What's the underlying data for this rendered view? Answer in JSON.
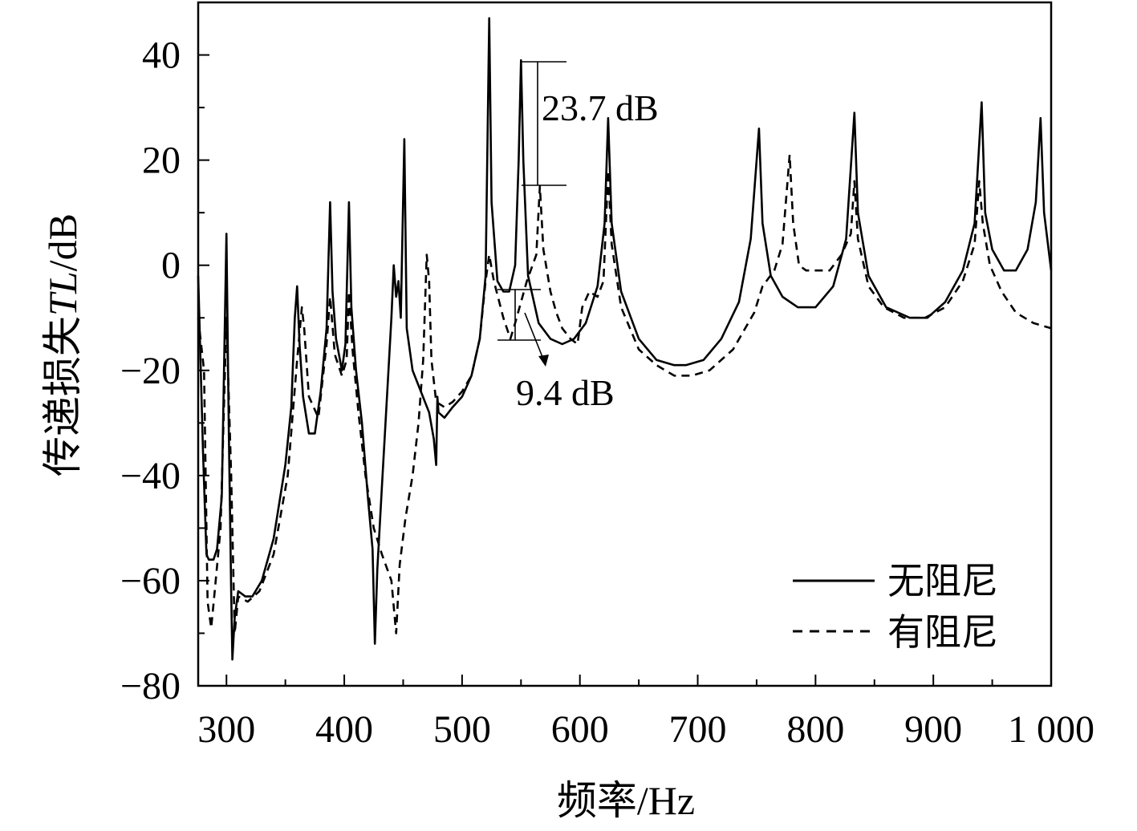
{
  "chart_data": {
    "type": "line",
    "xlabel": "频率/Hz",
    "ylabel_prefix": "传递损失",
    "ylabel_italic": "TL",
    "ylabel_suffix": "/dB",
    "xlim": [
      276,
      1000
    ],
    "ylim": [
      -80,
      50
    ],
    "x_ticks": [
      300,
      400,
      500,
      600,
      700,
      800,
      900,
      1000
    ],
    "x_tick_labels": [
      "300",
      "400",
      "500",
      "600",
      "700",
      "800",
      "900",
      "1 000"
    ],
    "y_ticks": [
      -80,
      -60,
      -40,
      -20,
      0,
      20,
      40
    ],
    "y_tick_labels": [
      "−80",
      "−60",
      "−40",
      "−20",
      "0",
      "20",
      "40"
    ],
    "grid": false,
    "legend_position": "bottom-right",
    "series": [
      {
        "name": "无阻尼",
        "style": "solid",
        "points": [
          [
            276,
            -2
          ],
          [
            280,
            -35
          ],
          [
            283,
            -55
          ],
          [
            285,
            -56
          ],
          [
            289,
            -56
          ],
          [
            292,
            -54
          ],
          [
            296,
            -44
          ],
          [
            300,
            6
          ],
          [
            302,
            -32
          ],
          [
            304,
            -62
          ],
          [
            305,
            -75
          ],
          [
            307,
            -67
          ],
          [
            310,
            -62
          ],
          [
            316,
            -63
          ],
          [
            322,
            -63
          ],
          [
            330,
            -60
          ],
          [
            340,
            -52
          ],
          [
            350,
            -38
          ],
          [
            355,
            -27
          ],
          [
            358,
            -10
          ],
          [
            360,
            -4
          ],
          [
            362,
            -15
          ],
          [
            365,
            -25
          ],
          [
            370,
            -32
          ],
          [
            375,
            -32
          ],
          [
            380,
            -24
          ],
          [
            385,
            -12
          ],
          [
            388,
            12
          ],
          [
            390,
            -5
          ],
          [
            393,
            -14
          ],
          [
            398,
            -20
          ],
          [
            401,
            -15
          ],
          [
            404,
            12
          ],
          [
            406,
            -8
          ],
          [
            410,
            -20
          ],
          [
            415,
            -30
          ],
          [
            420,
            -44
          ],
          [
            424,
            -54
          ],
          [
            426,
            -72
          ],
          [
            428,
            -58
          ],
          [
            432,
            -42
          ],
          [
            437,
            -22
          ],
          [
            440,
            -10
          ],
          [
            442,
            0
          ],
          [
            444,
            -6
          ],
          [
            446,
            -3
          ],
          [
            448,
            -10
          ],
          [
            451,
            24
          ],
          [
            453,
            -12
          ],
          [
            458,
            -20
          ],
          [
            465,
            -24
          ],
          [
            472,
            -28
          ],
          [
            476,
            -33
          ],
          [
            478,
            -38
          ],
          [
            479,
            -25
          ],
          [
            480,
            -28
          ],
          [
            485,
            -29
          ],
          [
            492,
            -27
          ],
          [
            500,
            -25
          ],
          [
            508,
            -21
          ],
          [
            515,
            -14
          ],
          [
            520,
            -2
          ],
          [
            523,
            47
          ],
          [
            525,
            12
          ],
          [
            530,
            -3
          ],
          [
            535,
            -5
          ],
          [
            540,
            -5
          ],
          [
            545,
            0
          ],
          [
            548,
            20
          ],
          [
            550,
            39
          ],
          [
            552,
            20
          ],
          [
            556,
            -2
          ],
          [
            565,
            -11
          ],
          [
            575,
            -14
          ],
          [
            585,
            -15
          ],
          [
            595,
            -14
          ],
          [
            605,
            -11
          ],
          [
            615,
            -4
          ],
          [
            621,
            8
          ],
          [
            624,
            28
          ],
          [
            627,
            8
          ],
          [
            635,
            -5
          ],
          [
            650,
            -14
          ],
          [
            665,
            -18
          ],
          [
            680,
            -19
          ],
          [
            690,
            -19
          ],
          [
            705,
            -18
          ],
          [
            720,
            -14
          ],
          [
            735,
            -7
          ],
          [
            745,
            5
          ],
          [
            752,
            26
          ],
          [
            755,
            8
          ],
          [
            762,
            -2
          ],
          [
            772,
            -6
          ],
          [
            785,
            -8
          ],
          [
            800,
            -8
          ],
          [
            815,
            -4
          ],
          [
            826,
            5
          ],
          [
            833,
            29
          ],
          [
            836,
            10
          ],
          [
            845,
            -2
          ],
          [
            860,
            -8
          ],
          [
            880,
            -10
          ],
          [
            895,
            -10
          ],
          [
            910,
            -7
          ],
          [
            925,
            -1
          ],
          [
            935,
            8
          ],
          [
            941,
            31
          ],
          [
            944,
            10
          ],
          [
            950,
            3
          ],
          [
            960,
            -1
          ],
          [
            970,
            -1
          ],
          [
            980,
            3
          ],
          [
            987,
            12
          ],
          [
            991,
            28
          ],
          [
            994,
            10
          ],
          [
            1000,
            -1
          ]
        ]
      },
      {
        "name": "有阻尼",
        "style": "dashed",
        "points": [
          [
            276,
            -10
          ],
          [
            281,
            -20
          ],
          [
            284,
            -64
          ],
          [
            287,
            -69
          ],
          [
            290,
            -62
          ],
          [
            295,
            -50
          ],
          [
            300,
            -10
          ],
          [
            304,
            -40
          ],
          [
            307,
            -70
          ],
          [
            310,
            -63
          ],
          [
            318,
            -64
          ],
          [
            328,
            -62
          ],
          [
            340,
            -55
          ],
          [
            352,
            -40
          ],
          [
            360,
            -18
          ],
          [
            364,
            -8
          ],
          [
            366,
            -12
          ],
          [
            370,
            -25
          ],
          [
            378,
            -29
          ],
          [
            385,
            -15
          ],
          [
            388,
            -6
          ],
          [
            392,
            -17
          ],
          [
            398,
            -21
          ],
          [
            402,
            -18
          ],
          [
            404,
            -5
          ],
          [
            407,
            -16
          ],
          [
            412,
            -28
          ],
          [
            418,
            -40
          ],
          [
            425,
            -50
          ],
          [
            432,
            -55
          ],
          [
            440,
            -60
          ],
          [
            444,
            -70
          ],
          [
            447,
            -57
          ],
          [
            452,
            -48
          ],
          [
            458,
            -40
          ],
          [
            463,
            -30
          ],
          [
            467,
            -18
          ],
          [
            470,
            2
          ],
          [
            472,
            -3
          ],
          [
            474,
            -18
          ],
          [
            478,
            -26
          ],
          [
            485,
            -27
          ],
          [
            492,
            -26
          ],
          [
            500,
            -24
          ],
          [
            508,
            -21
          ],
          [
            515,
            -14
          ],
          [
            520,
            -3
          ],
          [
            523,
            2
          ],
          [
            527,
            -3
          ],
          [
            535,
            -10
          ],
          [
            541,
            -14
          ],
          [
            545,
            -11
          ],
          [
            550,
            -7
          ],
          [
            555,
            -3
          ],
          [
            563,
            2
          ],
          [
            566,
            15
          ],
          [
            569,
            3
          ],
          [
            575,
            -5
          ],
          [
            580,
            -9
          ],
          [
            585,
            -12
          ],
          [
            592,
            -14
          ],
          [
            598,
            -15
          ],
          [
            602,
            -8
          ],
          [
            608,
            -5
          ],
          [
            615,
            -6
          ],
          [
            620,
            -3
          ],
          [
            624,
            18
          ],
          [
            627,
            4
          ],
          [
            635,
            -8
          ],
          [
            650,
            -16
          ],
          [
            665,
            -19
          ],
          [
            680,
            -21
          ],
          [
            695,
            -21
          ],
          [
            710,
            -20
          ],
          [
            730,
            -16
          ],
          [
            748,
            -9
          ],
          [
            755,
            -4
          ],
          [
            765,
            -1
          ],
          [
            772,
            4
          ],
          [
            778,
            21
          ],
          [
            781,
            8
          ],
          [
            786,
            0
          ],
          [
            792,
            -1
          ],
          [
            800,
            -1
          ],
          [
            812,
            -1
          ],
          [
            822,
            2
          ],
          [
            830,
            6
          ],
          [
            833,
            16
          ],
          [
            836,
            5
          ],
          [
            845,
            -4
          ],
          [
            858,
            -8
          ],
          [
            875,
            -10
          ],
          [
            893,
            -10
          ],
          [
            910,
            -8
          ],
          [
            925,
            -3
          ],
          [
            935,
            4
          ],
          [
            939,
            16
          ],
          [
            942,
            8
          ],
          [
            948,
            0
          ],
          [
            958,
            -5
          ],
          [
            970,
            -9
          ],
          [
            985,
            -11
          ],
          [
            1000,
            -12
          ]
        ]
      }
    ],
    "annotations": [
      {
        "label": "23.7 dB"
      },
      {
        "label": "9.4 dB"
      }
    ]
  }
}
